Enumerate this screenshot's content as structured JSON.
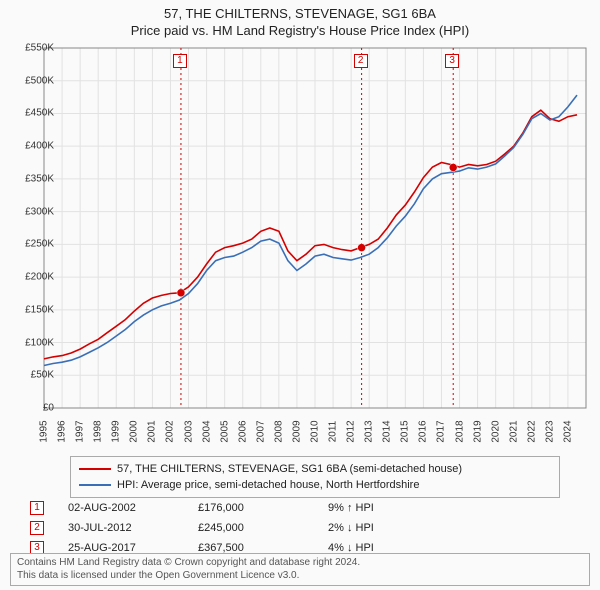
{
  "title1": "57, THE CHILTERNS, STEVENAGE, SG1 6BA",
  "title2": "Price paid vs. HM Land Registry's House Price Index (HPI)",
  "chart": {
    "type": "line",
    "background_color": "#fafafa",
    "grid_color": "#e2e2e2",
    "axis_color": "#888888",
    "text_color": "#333333",
    "title_fontsize": 13,
    "label_fontsize": 10,
    "y_axis": {
      "min": 0,
      "max": 550,
      "step": 50,
      "labels": [
        "£0",
        "£50K",
        "£100K",
        "£150K",
        "£200K",
        "£250K",
        "£300K",
        "£350K",
        "£400K",
        "£450K",
        "£500K",
        "£550K"
      ]
    },
    "x_axis": {
      "min": 1995,
      "max": 2025,
      "labels": [
        "1995",
        "1996",
        "1997",
        "1998",
        "1999",
        "2000",
        "2001",
        "2002",
        "2003",
        "2004",
        "2005",
        "2006",
        "2007",
        "2008",
        "2009",
        "2010",
        "2011",
        "2012",
        "2013",
        "2014",
        "2015",
        "2016",
        "2017",
        "2018",
        "2019",
        "2020",
        "2021",
        "2022",
        "2023",
        "2024"
      ]
    },
    "series": [
      {
        "label": "57, THE CHILTERNS, STEVENAGE, SG1 6BA (semi-detached house)",
        "color": "#d40000",
        "line_width": 1.6,
        "points": [
          [
            1995,
            75
          ],
          [
            1995.5,
            78
          ],
          [
            1996,
            80
          ],
          [
            1996.5,
            84
          ],
          [
            1997,
            90
          ],
          [
            1997.5,
            98
          ],
          [
            1998,
            105
          ],
          [
            1998.5,
            115
          ],
          [
            1999,
            125
          ],
          [
            1999.5,
            135
          ],
          [
            2000,
            148
          ],
          [
            2000.5,
            160
          ],
          [
            2001,
            168
          ],
          [
            2001.5,
            172
          ],
          [
            2002,
            175
          ],
          [
            2002.5,
            176
          ],
          [
            2003,
            185
          ],
          [
            2003.5,
            200
          ],
          [
            2004,
            220
          ],
          [
            2004.5,
            238
          ],
          [
            2005,
            245
          ],
          [
            2005.5,
            248
          ],
          [
            2006,
            252
          ],
          [
            2006.5,
            258
          ],
          [
            2007,
            270
          ],
          [
            2007.5,
            275
          ],
          [
            2008,
            270
          ],
          [
            2008.5,
            240
          ],
          [
            2009,
            225
          ],
          [
            2009.5,
            235
          ],
          [
            2010,
            248
          ],
          [
            2010.5,
            250
          ],
          [
            2011,
            245
          ],
          [
            2011.5,
            242
          ],
          [
            2012,
            240
          ],
          [
            2012.5,
            245
          ],
          [
            2013,
            250
          ],
          [
            2013.5,
            258
          ],
          [
            2014,
            275
          ],
          [
            2014.5,
            295
          ],
          [
            2015,
            310
          ],
          [
            2015.5,
            330
          ],
          [
            2016,
            352
          ],
          [
            2016.5,
            368
          ],
          [
            2017,
            375
          ],
          [
            2017.5,
            372
          ],
          [
            2018,
            368
          ],
          [
            2018.5,
            372
          ],
          [
            2019,
            370
          ],
          [
            2019.5,
            372
          ],
          [
            2020,
            377
          ],
          [
            2020.5,
            388
          ],
          [
            2021,
            400
          ],
          [
            2021.5,
            420
          ],
          [
            2022,
            445
          ],
          [
            2022.5,
            455
          ],
          [
            2023,
            442
          ],
          [
            2023.5,
            438
          ],
          [
            2024,
            445
          ],
          [
            2024.5,
            448
          ]
        ]
      },
      {
        "label": "HPI: Average price, semi-detached house, North Hertfordshire",
        "color": "#3a6fb7",
        "line_width": 1.6,
        "points": [
          [
            1995,
            65
          ],
          [
            1995.5,
            68
          ],
          [
            1996,
            70
          ],
          [
            1996.5,
            73
          ],
          [
            1997,
            78
          ],
          [
            1997.5,
            85
          ],
          [
            1998,
            92
          ],
          [
            1998.5,
            100
          ],
          [
            1999,
            110
          ],
          [
            1999.5,
            120
          ],
          [
            2000,
            132
          ],
          [
            2000.5,
            142
          ],
          [
            2001,
            150
          ],
          [
            2001.5,
            156
          ],
          [
            2002,
            160
          ],
          [
            2002.5,
            165
          ],
          [
            2003,
            175
          ],
          [
            2003.5,
            190
          ],
          [
            2004,
            210
          ],
          [
            2004.5,
            225
          ],
          [
            2005,
            230
          ],
          [
            2005.5,
            232
          ],
          [
            2006,
            238
          ],
          [
            2006.5,
            245
          ],
          [
            2007,
            255
          ],
          [
            2007.5,
            258
          ],
          [
            2008,
            252
          ],
          [
            2008.5,
            225
          ],
          [
            2009,
            210
          ],
          [
            2009.5,
            220
          ],
          [
            2010,
            232
          ],
          [
            2010.5,
            235
          ],
          [
            2011,
            230
          ],
          [
            2011.5,
            228
          ],
          [
            2012,
            226
          ],
          [
            2012.5,
            230
          ],
          [
            2013,
            235
          ],
          [
            2013.5,
            245
          ],
          [
            2014,
            260
          ],
          [
            2014.5,
            278
          ],
          [
            2015,
            293
          ],
          [
            2015.5,
            312
          ],
          [
            2016,
            335
          ],
          [
            2016.5,
            350
          ],
          [
            2017,
            358
          ],
          [
            2017.5,
            360
          ],
          [
            2018,
            362
          ],
          [
            2018.5,
            367
          ],
          [
            2019,
            365
          ],
          [
            2019.5,
            368
          ],
          [
            2020,
            373
          ],
          [
            2020.5,
            385
          ],
          [
            2021,
            398
          ],
          [
            2021.5,
            418
          ],
          [
            2022,
            442
          ],
          [
            2022.5,
            450
          ],
          [
            2023,
            440
          ],
          [
            2023.5,
            445
          ],
          [
            2024,
            460
          ],
          [
            2024.5,
            478
          ]
        ]
      }
    ],
    "markers": [
      {
        "n": "1",
        "year": 2002.58,
        "color": "#d40000"
      },
      {
        "n": "2",
        "year": 2012.58,
        "color": "#d40000"
      },
      {
        "n": "3",
        "year": 2017.65,
        "color": "#d40000"
      }
    ],
    "sale_points": [
      {
        "year": 2002.58,
        "value": 176,
        "color": "#d40000"
      },
      {
        "year": 2012.58,
        "value": 245,
        "color": "#d40000"
      },
      {
        "year": 2017.65,
        "value": 367.5,
        "color": "#d40000"
      }
    ]
  },
  "legend": {
    "border_color": "#aaaaaa",
    "items": [
      {
        "color": "#d40000",
        "label": "57, THE CHILTERNS, STEVENAGE, SG1 6BA (semi-detached house)"
      },
      {
        "color": "#3a6fb7",
        "label": "HPI: Average price, semi-detached house, North Hertfordshire"
      }
    ]
  },
  "transactions": [
    {
      "n": "1",
      "color": "#d40000",
      "date": "02-AUG-2002",
      "price": "£176,000",
      "diff": "9% ↑ HPI"
    },
    {
      "n": "2",
      "color": "#d40000",
      "date": "30-JUL-2012",
      "price": "£245,000",
      "diff": "2% ↓ HPI"
    },
    {
      "n": "3",
      "color": "#d40000",
      "date": "25-AUG-2017",
      "price": "£367,500",
      "diff": "4% ↓ HPI"
    }
  ],
  "footer": {
    "line1": "Contains HM Land Registry data © Crown copyright and database right 2024.",
    "line2": "This data is licensed under the Open Government Licence v3.0.",
    "border_color": "#aaaaaa",
    "text_color": "#555555"
  }
}
